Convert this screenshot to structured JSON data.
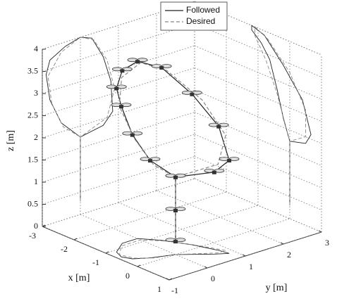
{
  "chart_data": {
    "type": "line3d",
    "xlabel": "x [m]",
    "ylabel": "y [m]",
    "zlabel": "z [m]",
    "xlim": [
      -3,
      1
    ],
    "ylim": [
      -1,
      3
    ],
    "zlim": [
      0,
      4
    ],
    "xticks": [
      -3,
      -2,
      -1,
      0,
      1
    ],
    "yticks": [
      -1,
      0,
      1,
      2,
      3
    ],
    "zticks": [
      0,
      0.5,
      1,
      1.5,
      2,
      2.5,
      3,
      3.5,
      4
    ],
    "grid": true,
    "wall_projections": true,
    "legend": "top",
    "series": [
      {
        "name": "Followed",
        "color": "#222222",
        "dash": "solid",
        "x": [
          0,
          0,
          0,
          0.5,
          0.67,
          0.4,
          -0.2,
          -0.8,
          -1.2,
          -1.2,
          -0.9,
          -0.63,
          -0.4,
          -0.2,
          0
        ],
        "y": [
          0,
          0,
          0,
          0.6,
          0.85,
          0.8,
          0.6,
          0.3,
          0,
          -0.4,
          -0.8,
          -0.9,
          -0.8,
          -0.5,
          0
        ],
        "z": [
          0.3,
          1.0,
          1.75,
          1.85,
          2.1,
          2.8,
          3.4,
          3.9,
          4.0,
          3.9,
          3.7,
          3.4,
          2.8,
          2.2,
          1.75
        ]
      },
      {
        "name": "Desired",
        "color": "#888888",
        "dash": "dashed",
        "x": [
          0,
          0,
          0.5,
          0.5,
          0,
          -0.7,
          -1.1,
          -1.1,
          -0.75,
          -0.4,
          -0.15,
          0
        ],
        "y": [
          0,
          0,
          0.7,
          0.9,
          0.7,
          0.35,
          0,
          -0.5,
          -0.85,
          -0.75,
          -0.45,
          0
        ],
        "z": [
          0.3,
          1.75,
          2.0,
          2.6,
          3.3,
          3.85,
          4.0,
          3.8,
          3.35,
          2.7,
          2.1,
          1.75
        ]
      }
    ]
  }
}
